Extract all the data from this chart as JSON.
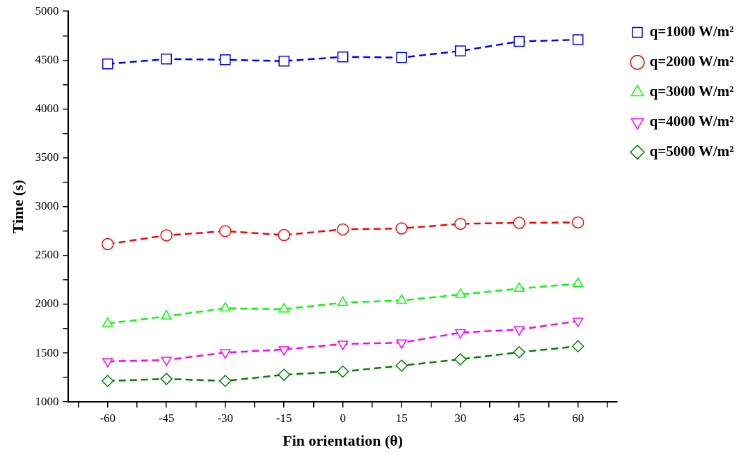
{
  "chart_data": {
    "type": "line",
    "xlabel": "Fin orientation (θ)",
    "ylabel": "Time (s)",
    "x": [
      -60,
      -45,
      -30,
      -15,
      0,
      15,
      30,
      45,
      60
    ],
    "series": [
      {
        "name": "q=1000 W/m²",
        "color": "#0000ff",
        "marker": "square",
        "values": [
          4461,
          4511,
          4504,
          4490,
          4533,
          4526,
          4594,
          4691,
          4709
        ]
      },
      {
        "name": "q=2000 W/m²",
        "color": "#ff0000",
        "marker": "circle",
        "values": [
          2616,
          2706,
          2749,
          2709,
          2767,
          2777,
          2824,
          2834,
          2838
        ]
      },
      {
        "name": "q=3000 W/m²",
        "color": "#00ff00",
        "marker": "triangle",
        "values": [
          1803,
          1878,
          1960,
          1950,
          2017,
          2039,
          2100,
          2161,
          2211
        ]
      },
      {
        "name": "q=4000 W/m²",
        "color": "#ff00ff",
        "marker": "triangle-down",
        "values": [
          1415,
          1430,
          1505,
          1537,
          1594,
          1606,
          1710,
          1742,
          1828
        ]
      },
      {
        "name": "q=5000 W/m²",
        "color": "#007f00",
        "marker": "diamond",
        "values": [
          1215,
          1236,
          1215,
          1279,
          1311,
          1372,
          1437,
          1509,
          1570
        ]
      }
    ],
    "line_style": "dashed",
    "legend": "right",
    "grid": false,
    "xlim": [
      -70,
      70
    ],
    "xticks": [
      {
        "value": -67.5,
        "label": null
      },
      -60,
      {
        "value": -52.5,
        "label": null
      },
      -45,
      {
        "value": -37.5,
        "label": null
      },
      -30,
      {
        "value": -22.5,
        "label": null
      },
      -15,
      {
        "value": -7.5,
        "label": null
      },
      0,
      {
        "value": 7.5,
        "label": null
      },
      15,
      {
        "value": 22.5,
        "label": null
      },
      30,
      {
        "value": 37.5,
        "label": null
      },
      45,
      {
        "value": 52.5,
        "label": null
      },
      60,
      {
        "value": 67.5,
        "label": null
      }
    ],
    "ylim": [
      1000,
      5000
    ],
    "yticks": [
      1000,
      {
        "value": 1250,
        "label": null
      },
      1500,
      {
        "value": 1750,
        "label": null
      },
      2000,
      {
        "value": 2250,
        "label": null
      },
      2500,
      {
        "value": 2750,
        "label": null
      },
      3000,
      {
        "value": 3250,
        "label": null
      },
      3500,
      {
        "value": 3750,
        "label": null
      },
      4000,
      {
        "value": 4250,
        "label": null
      },
      4500,
      {
        "value": 4750,
        "label": null
      },
      5000
    ]
  }
}
